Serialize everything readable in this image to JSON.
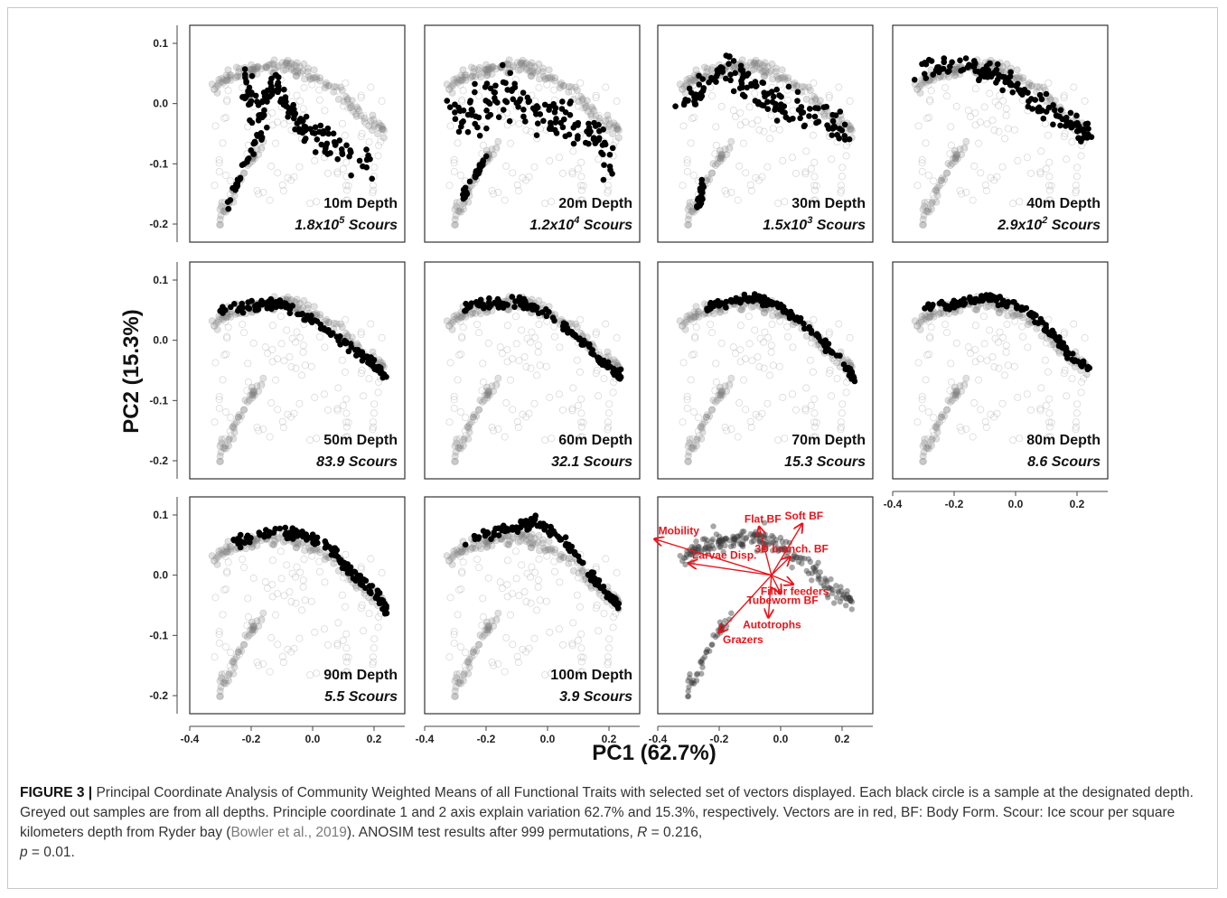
{
  "chart_data": {
    "type": "scatter",
    "xlabel": "PC1 (62.7%)",
    "ylabel": "PC2 (15.3%)",
    "xlim": [
      -0.4,
      0.3
    ],
    "ylim": [
      -0.23,
      0.13
    ],
    "x_ticks": [
      "-0.4",
      "-0.2",
      "0.0",
      "0.2"
    ],
    "y_ticks": [
      "0.1",
      "0.0",
      "-0.1",
      "-0.2"
    ],
    "panels": [
      {
        "depth": "10m Depth",
        "sup_base": "1.8x10",
        "sup_exp": "5",
        "sup_tail": " Scours",
        "scour_label": "",
        "ridge": [
          [
            -0.29,
            -0.19
          ],
          [
            -0.26,
            -0.15
          ],
          [
            -0.22,
            -0.1
          ],
          [
            -0.18,
            -0.06
          ],
          [
            -0.15,
            -0.03
          ]
        ],
        "curve": [
          [
            -0.22,
            0.04
          ],
          [
            -0.18,
            -0.02
          ],
          [
            -0.12,
            0.03
          ],
          [
            -0.05,
            -0.03
          ],
          [
            0.02,
            -0.06
          ],
          [
            0.1,
            -0.08
          ],
          [
            0.2,
            -0.11
          ]
        ],
        "spread": 0.035
      },
      {
        "depth": "20m Depth",
        "sup_base": "1.2x10",
        "sup_exp": "4",
        "sup_tail": " Scours",
        "scour_label": "",
        "ridge": [
          [
            -0.28,
            -0.16
          ],
          [
            -0.24,
            -0.12
          ],
          [
            -0.2,
            -0.09
          ]
        ],
        "curve": [
          [
            -0.32,
            0.0
          ],
          [
            -0.24,
            -0.02
          ],
          [
            -0.16,
            0.02
          ],
          [
            -0.08,
            0.0
          ],
          [
            0.0,
            -0.02
          ],
          [
            0.08,
            -0.03
          ],
          [
            0.15,
            -0.05
          ],
          [
            0.2,
            -0.1
          ]
        ],
        "spread": 0.045
      },
      {
        "depth": "30m Depth",
        "sup_base": "1.5x10",
        "sup_exp": "3",
        "sup_tail": " Scours",
        "scour_label": "",
        "ridge": [
          [
            -0.27,
            -0.17
          ],
          [
            -0.25,
            -0.13
          ]
        ],
        "curve": [
          [
            -0.33,
            -0.01
          ],
          [
            -0.24,
            0.04
          ],
          [
            -0.16,
            0.05
          ],
          [
            -0.08,
            0.02
          ],
          [
            0.0,
            0.0
          ],
          [
            0.08,
            -0.01
          ],
          [
            0.16,
            -0.03
          ],
          [
            0.22,
            -0.05
          ]
        ],
        "spread": 0.035
      },
      {
        "depth": "40m Depth",
        "sup_base": "2.9x10",
        "sup_exp": "2",
        "sup_tail": " Scours",
        "scour_label": "",
        "ridge": [],
        "curve": [
          [
            -0.33,
            0.05
          ],
          [
            -0.24,
            0.06
          ],
          [
            -0.14,
            0.06
          ],
          [
            -0.06,
            0.05
          ],
          [
            0.02,
            0.02
          ],
          [
            0.1,
            -0.01
          ],
          [
            0.18,
            -0.03
          ],
          [
            0.24,
            -0.05
          ]
        ],
        "spread": 0.022
      },
      {
        "depth": "50m Depth",
        "sup_base": "",
        "sup_exp": "",
        "sup_tail": "",
        "scour_label": "83.9 Scours",
        "ridge": [],
        "curve": [
          [
            -0.3,
            0.05
          ],
          [
            -0.2,
            0.055
          ],
          [
            -0.12,
            0.06
          ],
          [
            -0.04,
            0.045
          ],
          [
            0.04,
            0.02
          ],
          [
            0.12,
            -0.01
          ],
          [
            0.2,
            -0.04
          ],
          [
            0.24,
            -0.06
          ]
        ],
        "spread": 0.01
      },
      {
        "depth": "60m Depth",
        "sup_base": "",
        "sup_exp": "",
        "sup_tail": "",
        "scour_label": "32.1 Scours",
        "ridge": [],
        "curve": [
          [
            -0.27,
            0.055
          ],
          [
            -0.18,
            0.06
          ],
          [
            -0.1,
            0.065
          ],
          [
            -0.02,
            0.05
          ],
          [
            0.06,
            0.02
          ],
          [
            0.14,
            -0.015
          ],
          [
            0.21,
            -0.05
          ],
          [
            0.24,
            -0.06
          ]
        ],
        "spread": 0.01
      },
      {
        "depth": "70m Depth",
        "sup_base": "",
        "sup_exp": "",
        "sup_tail": "",
        "scour_label": "15.3 Scours",
        "ridge": [],
        "curve": [
          [
            -0.24,
            0.055
          ],
          [
            -0.16,
            0.065
          ],
          [
            -0.08,
            0.07
          ],
          [
            0.0,
            0.055
          ],
          [
            0.08,
            0.025
          ],
          [
            0.15,
            -0.01
          ],
          [
            0.22,
            -0.045
          ],
          [
            0.24,
            -0.065
          ]
        ],
        "spread": 0.009
      },
      {
        "depth": "80m Depth",
        "sup_base": "",
        "sup_exp": "",
        "sup_tail": "",
        "scour_label": "8.6 Scours",
        "ridge": [],
        "curve": [
          [
            -0.3,
            0.055
          ],
          [
            -0.2,
            0.06
          ],
          [
            -0.1,
            0.07
          ],
          [
            -0.02,
            0.065
          ],
          [
            0.06,
            0.04
          ],
          [
            0.12,
            0.01
          ],
          [
            0.18,
            -0.025
          ],
          [
            0.24,
            -0.05
          ]
        ],
        "spread": 0.01
      },
      {
        "depth": "90m Depth",
        "sup_base": "",
        "sup_exp": "",
        "sup_tail": "",
        "scour_label": "5.5 Scours",
        "ridge": [],
        "curve": [
          [
            -0.27,
            0.055
          ],
          [
            -0.18,
            0.065
          ],
          [
            -0.1,
            0.07
          ],
          [
            -0.02,
            0.065
          ],
          [
            0.05,
            0.05
          ],
          [
            0.1,
            0.02
          ],
          [
            0.16,
            -0.01
          ],
          [
            0.22,
            -0.04
          ],
          [
            0.24,
            -0.06
          ]
        ],
        "spread": 0.012
      },
      {
        "depth": "100m Depth",
        "sup_base": "",
        "sup_exp": "",
        "sup_tail": "",
        "scour_label": "3.9 Scours",
        "ridge": [],
        "curve": [
          [
            -0.27,
            0.055
          ],
          [
            -0.18,
            0.07
          ],
          [
            -0.1,
            0.08
          ],
          [
            -0.04,
            0.09
          ],
          [
            0.02,
            0.07
          ],
          [
            0.08,
            0.04
          ],
          [
            0.14,
            0.0
          ],
          [
            0.19,
            -0.03
          ],
          [
            0.23,
            -0.05
          ]
        ],
        "spread": 0.012
      }
    ],
    "biplot": {
      "vectors": [
        {
          "label": "Flat BF",
          "dx": -0.04,
          "dy": 0.08
        },
        {
          "label": "Soft BF",
          "dx": 0.1,
          "dy": 0.085
        },
        {
          "label": "Mobility",
          "dx": -0.38,
          "dy": 0.06
        },
        {
          "label": "3D branch. BF",
          "dx": 0.06,
          "dy": 0.03
        },
        {
          "label": "Larvae Disp.",
          "dx": -0.27,
          "dy": 0.02
        },
        {
          "label": "Filter feeders",
          "dx": 0.07,
          "dy": -0.015
        },
        {
          "label": "Tubeworm BF",
          "dx": 0.03,
          "dy": -0.03
        },
        {
          "label": "Autotrophs",
          "dx": -0.01,
          "dy": -0.07
        },
        {
          "label": "Grazers",
          "dx": -0.17,
          "dy": -0.095
        }
      ]
    }
  },
  "caption": {
    "label": "FIGURE 3 |",
    "text1": " Principal Coordinate Analysis of Community Weighted Means of all Functional Traits with selected set of vectors displayed. Each black circle is a sample at the designated depth. Greyed out samples are from all depths. Principle coordinate 1 and 2 axis explain variation 62.7% and 15.3%, respectively. Vectors are in red, BF: Body Form. Scour: Ice scour per square kilometers depth from Ryder bay (",
    "ref": "Bowler et al., 2019",
    "text2": "). ANOSIM test results after 999 permutations, ",
    "r_sym": "R",
    "r_val": " = 0.216,",
    "p_sym": "p",
    "p_val": " = 0.01."
  }
}
